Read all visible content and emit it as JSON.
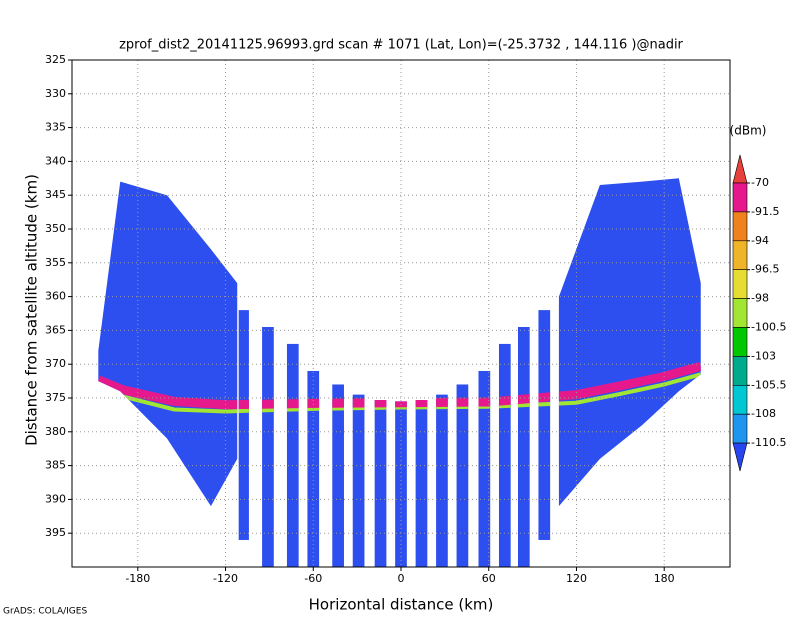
{
  "chart_data": {
    "type": "swath",
    "title": "zprof_dist2_20141125.96993.grd  scan # 1071  (Lat, Lon)=(-25.3732 , 144.116 )@nadir",
    "x_label": "Horizontal distance (km)",
    "y_label": "Distance from satellite altitude (km)",
    "credit": "GrADS: COLA/IGES",
    "xlim": [
      -225,
      225
    ],
    "xticks": [
      -180,
      -120,
      -60,
      0,
      60,
      120,
      180
    ],
    "ylim": [
      325,
      400
    ],
    "yticks": [
      325,
      330,
      335,
      340,
      345,
      350,
      355,
      360,
      365,
      370,
      375,
      380,
      385,
      390,
      395
    ],
    "grid": true,
    "field_color": "#2d4ff0",
    "regions": [
      {
        "x": [
          -207,
          -192,
          -160,
          -130,
          -112
        ],
        "top": [
          368,
          343,
          345,
          353,
          358
        ],
        "bottom": [
          372.5,
          374,
          381,
          391,
          384
        ]
      },
      {
        "x": [
          108,
          136,
          165,
          190,
          205
        ],
        "top": [
          360,
          343.5,
          343,
          342.5,
          358
        ],
        "bottom": [
          391,
          384,
          379,
          374,
          371.5
        ]
      }
    ],
    "strips": [
      {
        "x0": -111,
        "x1": -104,
        "top": 362,
        "bottom": 396
      },
      {
        "x0": -95,
        "x1": -87,
        "top": 364.5,
        "bottom": 400
      },
      {
        "x0": -78,
        "x1": -70,
        "top": 367,
        "bottom": 400
      },
      {
        "x0": -64,
        "x1": -56,
        "top": 371,
        "bottom": 400
      },
      {
        "x0": -47,
        "x1": -39,
        "top": 373,
        "bottom": 400
      },
      {
        "x0": -33,
        "x1": -25,
        "top": 374.5,
        "bottom": 400
      },
      {
        "x0": -18,
        "x1": -10,
        "top": 375.3,
        "bottom": 400
      },
      {
        "x0": -4,
        "x1": 4,
        "top": 375.5,
        "bottom": 400
      },
      {
        "x0": 10,
        "x1": 18,
        "top": 375.3,
        "bottom": 400
      },
      {
        "x0": 24,
        "x1": 32,
        "top": 374.5,
        "bottom": 400
      },
      {
        "x0": 38,
        "x1": 46,
        "top": 373,
        "bottom": 400
      },
      {
        "x0": 53,
        "x1": 61,
        "top": 371,
        "bottom": 400
      },
      {
        "x0": 67,
        "x1": 75,
        "top": 367,
        "bottom": 400
      },
      {
        "x0": 80,
        "x1": 88,
        "top": 364.5,
        "bottom": 400
      },
      {
        "x0": 94,
        "x1": 102,
        "top": 362,
        "bottom": 396
      }
    ],
    "surface": {
      "color": "#e6198c",
      "x": [
        -207,
        -190,
        -155,
        -120,
        -60,
        0,
        60,
        120,
        150,
        180,
        205
      ],
      "y": [
        372.3,
        373.8,
        375.5,
        376,
        375.8,
        375.7,
        375.6,
        374.5,
        373.2,
        371.8,
        370.3
      ]
    },
    "surface_edge": {
      "color": "#a0e632",
      "x": [
        -207,
        -190,
        -155,
        -120,
        -60,
        0,
        60,
        120,
        150,
        180,
        205
      ],
      "y": [
        373.3,
        374.8,
        376.7,
        377,
        376.6,
        376.4,
        376.3,
        375.7,
        374.4,
        373,
        371.5
      ]
    },
    "colorbar": {
      "unit": "(dBm)",
      "levels": [
        -70,
        -91.5,
        -94,
        -96.5,
        -98,
        -100.5,
        -103,
        -105.5,
        -108,
        -110.5
      ],
      "colors": [
        "#e8403a",
        "#e6198c",
        "#f0821e",
        "#f0b428",
        "#e6dc32",
        "#a0e632",
        "#00c800",
        "#00aa8c",
        "#00c8d2",
        "#1e96f0",
        "#2846f0"
      ]
    }
  }
}
